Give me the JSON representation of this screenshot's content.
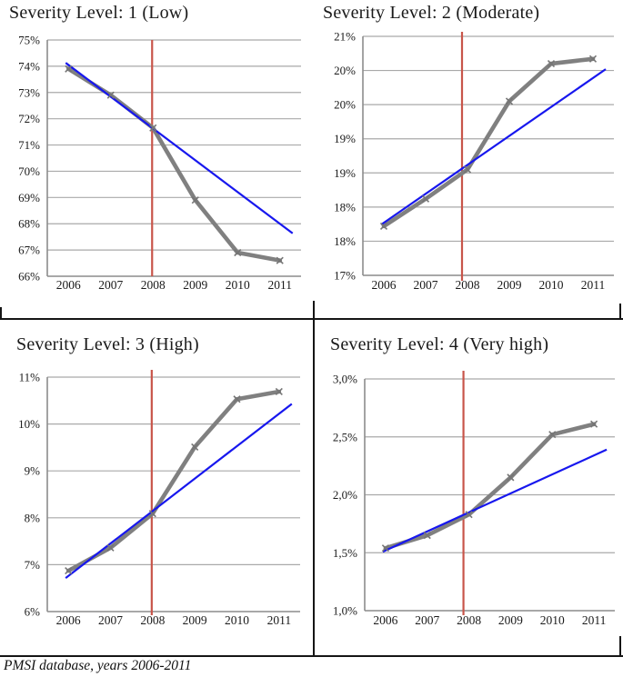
{
  "figure": {
    "caption": "PMSI database, years 2006-2011"
  },
  "chart_data": [
    {
      "type": "line",
      "title": "Severity Level: 1 (Low)",
      "x": [
        "2006",
        "2007",
        "2008",
        "2009",
        "2010",
        "2011"
      ],
      "series": [
        {
          "name": "observed-share",
          "color": "#808080",
          "values": [
            73.9,
            72.9,
            71.65,
            68.9,
            66.9,
            66.6
          ]
        },
        {
          "name": "linear-trend",
          "color": "#1717ee",
          "values": [
            74.05,
            72.84,
            71.63,
            70.42,
            69.21,
            68.0
          ]
        }
      ],
      "ylim": [
        66,
        75
      ],
      "yticks_bottom_to_top": [
        "66%",
        "67%",
        "68%",
        "69%",
        "70%",
        "71%",
        "72%",
        "73%",
        "74%",
        "75%"
      ],
      "ref_line_x": "2008",
      "ref_line_color": "#c8554a",
      "grid": true,
      "legend": "none"
    },
    {
      "type": "line",
      "title": "Severity Level: 2 (Moderate)",
      "x": [
        "2006",
        "2007",
        "2008",
        "2009",
        "2010",
        "2011"
      ],
      "series": [
        {
          "name": "observed-share",
          "color": "#808080",
          "values": [
            17.72,
            18.12,
            18.55,
            19.55,
            20.1,
            20.17
          ]
        },
        {
          "name": "linear-trend",
          "color": "#1717ee",
          "values": [
            17.77,
            18.19,
            18.62,
            19.04,
            19.47,
            19.89
          ]
        }
      ],
      "ylim": [
        17,
        20.5
      ],
      "yticks_bottom_to_top": [
        "17%",
        "18%",
        "18%",
        "19%",
        "19%",
        "20%",
        "20%",
        "21%"
      ],
      "ref_line_x": "2008",
      "ref_line_color": "#c8554a",
      "grid": true,
      "legend": "none"
    },
    {
      "type": "line",
      "title": "Severity Level: 3 (High)",
      "x": [
        "2006",
        "2007",
        "2008",
        "2009",
        "2010",
        "2011"
      ],
      "series": [
        {
          "name": "observed-share",
          "color": "#808080",
          "values": [
            6.87,
            7.36,
            8.09,
            9.51,
            10.53,
            10.69
          ]
        },
        {
          "name": "linear-trend",
          "color": "#1717ee",
          "values": [
            6.76,
            7.45,
            8.14,
            8.84,
            9.53,
            10.22
          ]
        }
      ],
      "ylim": [
        6,
        11
      ],
      "yticks_bottom_to_top": [
        "6%",
        "7%",
        "8%",
        "9%",
        "10%",
        "11%"
      ],
      "ref_line_x": "2008",
      "ref_line_color": "#c8554a",
      "grid": true,
      "legend": "none"
    },
    {
      "type": "line",
      "title": "Severity Level: 4 (Very high)",
      "x": [
        "2006",
        "2007",
        "2008",
        "2009",
        "2010",
        "2011"
      ],
      "series": [
        {
          "name": "observed-share",
          "color": "#808080",
          "values": [
            1.54,
            1.65,
            1.83,
            2.15,
            2.52,
            2.61
          ]
        },
        {
          "name": "linear-trend",
          "color": "#1717ee",
          "values": [
            1.52,
            1.68,
            1.85,
            2.01,
            2.18,
            2.34
          ]
        }
      ],
      "ylim": [
        1,
        3
      ],
      "yticks_bottom_to_top": [
        "1,0%",
        "1,5%",
        "2,0%",
        "2,5%",
        "3,0%"
      ],
      "ref_line_x": "2008",
      "ref_line_color": "#c8554a",
      "grid": true,
      "legend": "none"
    }
  ]
}
